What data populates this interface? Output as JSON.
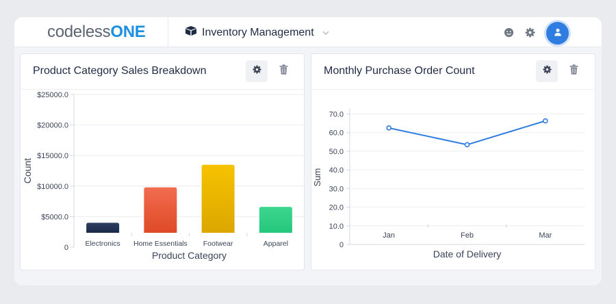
{
  "header": {
    "logo_part1": "codeless",
    "logo_part2": "ONE",
    "app_name": "Inventory Management"
  },
  "colors": {
    "brand_blue": "#1c8fe0",
    "avatar_blue": "#2f7de1",
    "line_blue": "#2f7de1"
  },
  "widgets": [
    {
      "title": "Product Category Sales Breakdown",
      "chart_data": {
        "type": "bar",
        "categories": [
          "Electronics",
          "Home Essentials",
          "Footwear",
          "Apparel"
        ],
        "values": [
          4000,
          9800,
          13500,
          6600
        ],
        "bar_colors": [
          [
            "#2d3e63",
            "#1c2a48"
          ],
          [
            "#f26c4f",
            "#de4a26"
          ],
          [
            "#f6c200",
            "#dca700"
          ],
          [
            "#3ed68e",
            "#24c77c"
          ]
        ],
        "xlabel": "Product Category",
        "ylabel": "Count",
        "y_ticks": [
          0,
          5000,
          10000,
          15000,
          20000,
          25000
        ],
        "y_tick_labels": [
          "0",
          "$5000.0",
          "$10000.0",
          "$15000.0",
          "$20000.0",
          "$25000.0"
        ],
        "ylim": [
          0,
          25000
        ],
        "grid": true
      }
    },
    {
      "title": "Monthly Purchase Order Count",
      "chart_data": {
        "type": "line",
        "categories": [
          "Jan",
          "Feb",
          "Mar"
        ],
        "values": [
          62.5,
          53.5,
          66.3
        ],
        "xlabel": "Date of Delivery",
        "ylabel": "Sum",
        "y_ticks": [
          0,
          10,
          20,
          30,
          40,
          50,
          60,
          70
        ],
        "y_tick_labels": [
          "0",
          "10.0",
          "20.0",
          "30.0",
          "40.0",
          "50.0",
          "60.0",
          "70.0"
        ],
        "ylim": [
          0,
          72
        ],
        "grid": true
      }
    }
  ]
}
